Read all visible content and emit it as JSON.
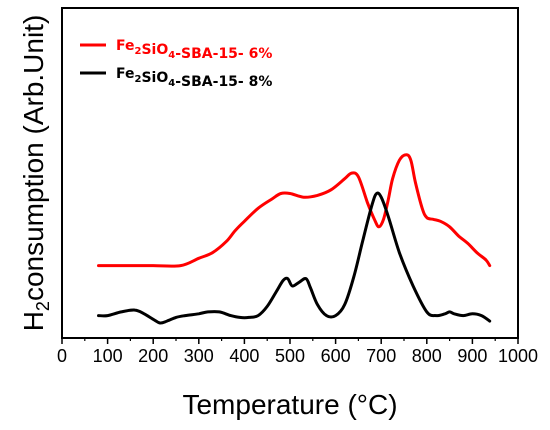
{
  "chart_data": {
    "type": "line",
    "xlabel": "Temperature (°C)",
    "ylabel": "consumption (Arb.Unit)",
    "ylabel_prefix": "H",
    "ylabel_subscript": "2",
    "xlim": [
      0,
      1000
    ],
    "ylim": [
      0,
      100
    ],
    "x_ticks": [
      0,
      100,
      200,
      300,
      400,
      500,
      600,
      700,
      800,
      900,
      1000
    ],
    "x_tick_labels": [
      "0",
      "100",
      "200",
      "300",
      "400",
      "500",
      "600",
      "700",
      "800",
      "900",
      "1000"
    ],
    "y_ticks_shown": false,
    "grid": false,
    "legend_position": "top-left",
    "series": [
      {
        "name": "Fe2SiO4-SBA-15- 6%",
        "legend": {
          "a": "Fe",
          "s1": "2",
          "b": "SiO",
          "s2": "4",
          "c": "-SBA-15- 6%"
        },
        "color": "#ff0000",
        "x": [
          80,
          150,
          200,
          260,
          300,
          330,
          360,
          380,
          400,
          430,
          460,
          480,
          500,
          530,
          560,
          590,
          620,
          635,
          650,
          670,
          685,
          695,
          705,
          715,
          725,
          740,
          755,
          765,
          775,
          790,
          800,
          815,
          830,
          850,
          870,
          890,
          910,
          930,
          938
        ],
        "y": [
          31,
          31,
          31,
          31,
          35,
          38,
          44,
          50,
          55,
          62,
          67,
          70,
          70,
          68,
          69,
          72,
          78,
          81,
          79,
          65,
          56,
          52,
          56,
          66,
          78,
          88,
          91,
          88,
          76,
          62,
          57,
          56,
          55,
          52,
          47,
          43,
          38,
          34,
          31
        ]
      },
      {
        "name": "Fe2SiO4-SBA-15- 8%",
        "legend": {
          "a": "Fe",
          "s1": "2",
          "b": "SiO",
          "s2": "4",
          "c": "-SBA-15- 8%"
        },
        "color": "#000000",
        "x": [
          80,
          100,
          130,
          160,
          180,
          200,
          215,
          230,
          250,
          270,
          300,
          320,
          345,
          370,
          390,
          410,
          430,
          450,
          470,
          485,
          495,
          505,
          520,
          535,
          545,
          560,
          580,
          600,
          620,
          640,
          660,
          680,
          690,
          700,
          715,
          740,
          770,
          800,
          820,
          840,
          850,
          860,
          880,
          900,
          920,
          938
        ],
        "y": [
          4,
          4,
          6,
          7,
          5,
          2,
          0,
          1,
          3,
          4,
          5,
          6,
          6,
          4,
          3,
          3,
          4,
          9,
          17,
          23,
          24,
          20,
          22,
          24,
          19,
          10,
          4,
          4,
          10,
          25,
          45,
          64,
          70,
          68,
          58,
          38,
          20,
          6,
          4,
          5,
          6,
          5,
          4,
          5,
          4,
          1
        ]
      }
    ]
  }
}
